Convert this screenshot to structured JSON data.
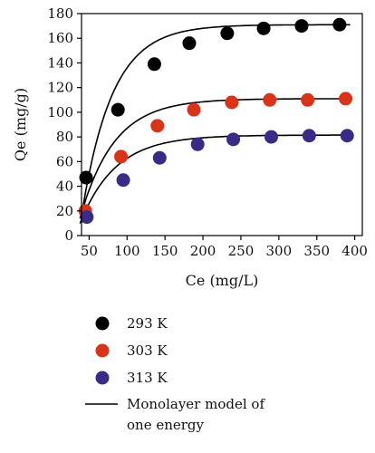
{
  "chart_data": {
    "type": "scatter",
    "xlabel": "Ce (mg/L)",
    "ylabel": "Qe (mg/g)",
    "xlim": [
      40,
      410
    ],
    "ylim": [
      0,
      180
    ],
    "xticks": [
      50,
      100,
      150,
      200,
      250,
      300,
      350,
      400
    ],
    "yticks": [
      0,
      20,
      40,
      60,
      80,
      100,
      120,
      140,
      160,
      180
    ],
    "grid": false,
    "legend_position": "below",
    "series": [
      {
        "name": "293 K",
        "color": "#000000",
        "points": [
          [
            46,
            47
          ],
          [
            88,
            102
          ],
          [
            136,
            139
          ],
          [
            182,
            156
          ],
          [
            232,
            164
          ],
          [
            280,
            168
          ],
          [
            330,
            170
          ],
          [
            380,
            171
          ]
        ]
      },
      {
        "name": "303 K",
        "color": "#d9331a",
        "points": [
          [
            45,
            20
          ],
          [
            92,
            64
          ],
          [
            140,
            89
          ],
          [
            188,
            102
          ],
          [
            238,
            108
          ],
          [
            288,
            110
          ],
          [
            338,
            110
          ],
          [
            388,
            111
          ]
        ]
      },
      {
        "name": "313 K",
        "color": "#3b2b86",
        "points": [
          [
            47,
            15
          ],
          [
            95,
            45
          ],
          [
            143,
            63
          ],
          [
            193,
            74
          ],
          [
            240,
            78
          ],
          [
            290,
            80
          ],
          [
            340,
            81
          ],
          [
            390,
            81
          ]
        ]
      }
    ],
    "model_curves": [
      {
        "series": "293 K",
        "color": "#000000",
        "qsat": 171,
        "k": 0.0248,
        "x0": 42
      },
      {
        "series": "303 K",
        "color": "#000000",
        "qsat": 111,
        "k": 0.0225,
        "x0": 38
      },
      {
        "series": "313 K",
        "color": "#000000",
        "qsat": 81.5,
        "k": 0.0215,
        "x0": 38
      }
    ],
    "model_legend": "Monolayer model of one energy"
  }
}
